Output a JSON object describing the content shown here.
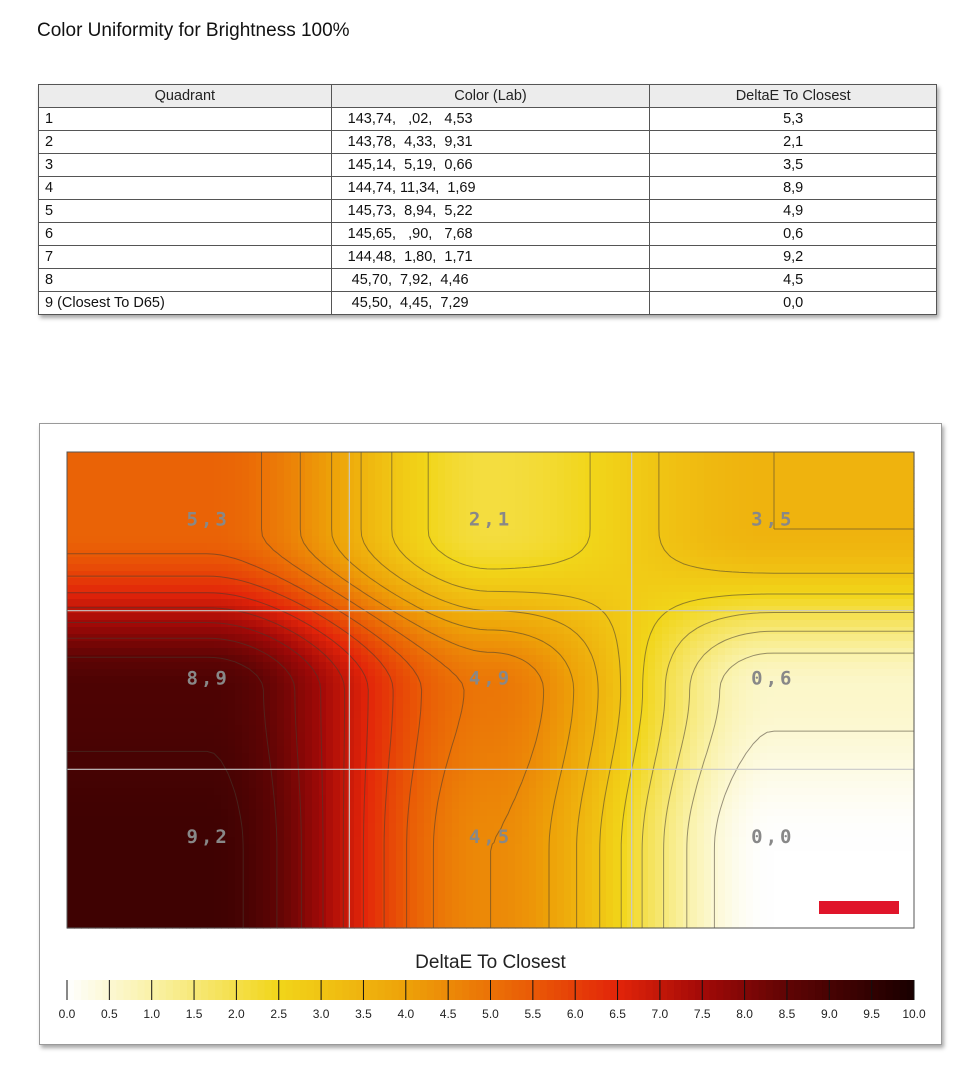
{
  "page_title": "Color Uniformity for Brightness 100%",
  "table": {
    "headers": [
      "Quadrant",
      "Color (Lab)",
      "DeltaE To Closest"
    ],
    "rows": [
      {
        "quadrant": "1",
        "lab": "143,74,   ,02,   4,53",
        "delta": "5,3"
      },
      {
        "quadrant": "2",
        "lab": "143,78,  4,33,  9,31",
        "delta": "2,1"
      },
      {
        "quadrant": "3",
        "lab": "145,14,  5,19,  0,66",
        "delta": "3,5"
      },
      {
        "quadrant": "4",
        "lab": "144,74, 11,34,  1,69",
        "delta": "8,9"
      },
      {
        "quadrant": "5",
        "lab": "145,73,  8,94,  5,22",
        "delta": "4,9"
      },
      {
        "quadrant": "6",
        "lab": "145,65,   ,90,   7,68",
        "delta": "0,6"
      },
      {
        "quadrant": "7",
        "lab": "144,48,  1,80,  1,71",
        "delta": "9,2"
      },
      {
        "quadrant": "8",
        "lab": " 45,70,  7,92,  4,46",
        "delta": "4,5"
      },
      {
        "quadrant": "9 (Closest To D65)",
        "lab": " 45,50,  4,45,  7,29",
        "delta": "0,0"
      }
    ]
  },
  "chart_data": {
    "type": "heatmap",
    "grid": [
      [
        5.3,
        2.1,
        3.5
      ],
      [
        8.9,
        4.9,
        0.6
      ],
      [
        9.2,
        4.5,
        0.0
      ]
    ],
    "cell_labels": [
      [
        "5,3",
        "2,1",
        "3,5"
      ],
      [
        "8,9",
        "4,9",
        "0,6"
      ],
      [
        "9,2",
        "4,5",
        "0,0"
      ]
    ],
    "colorbar": {
      "title": "DeltaE To Closest",
      "min": 0,
      "max": 10,
      "ticks": [
        "0.0",
        "0.5",
        "1.0",
        "1.5",
        "2.0",
        "2.5",
        "3.0",
        "3.5",
        "4.0",
        "4.5",
        "5.0",
        "5.5",
        "6.0",
        "6.5",
        "7.0",
        "7.5",
        "8.0",
        "8.5",
        "9.0",
        "9.5",
        "10.0"
      ]
    },
    "color_stops": [
      {
        "v": 0.0,
        "color": "#ffffff"
      },
      {
        "v": 1.0,
        "color": "#faf2a8"
      },
      {
        "v": 2.5,
        "color": "#f2d61a"
      },
      {
        "v": 4.0,
        "color": "#eea209"
      },
      {
        "v": 5.5,
        "color": "#ea5a06"
      },
      {
        "v": 6.5,
        "color": "#e3250a"
      },
      {
        "v": 7.5,
        "color": "#a30a08"
      },
      {
        "v": 8.5,
        "color": "#600505"
      },
      {
        "v": 10.0,
        "color": "#1a0000"
      }
    ],
    "grid_lines": true,
    "contour_step": 0.5,
    "watermark_color": "#e0152a"
  }
}
